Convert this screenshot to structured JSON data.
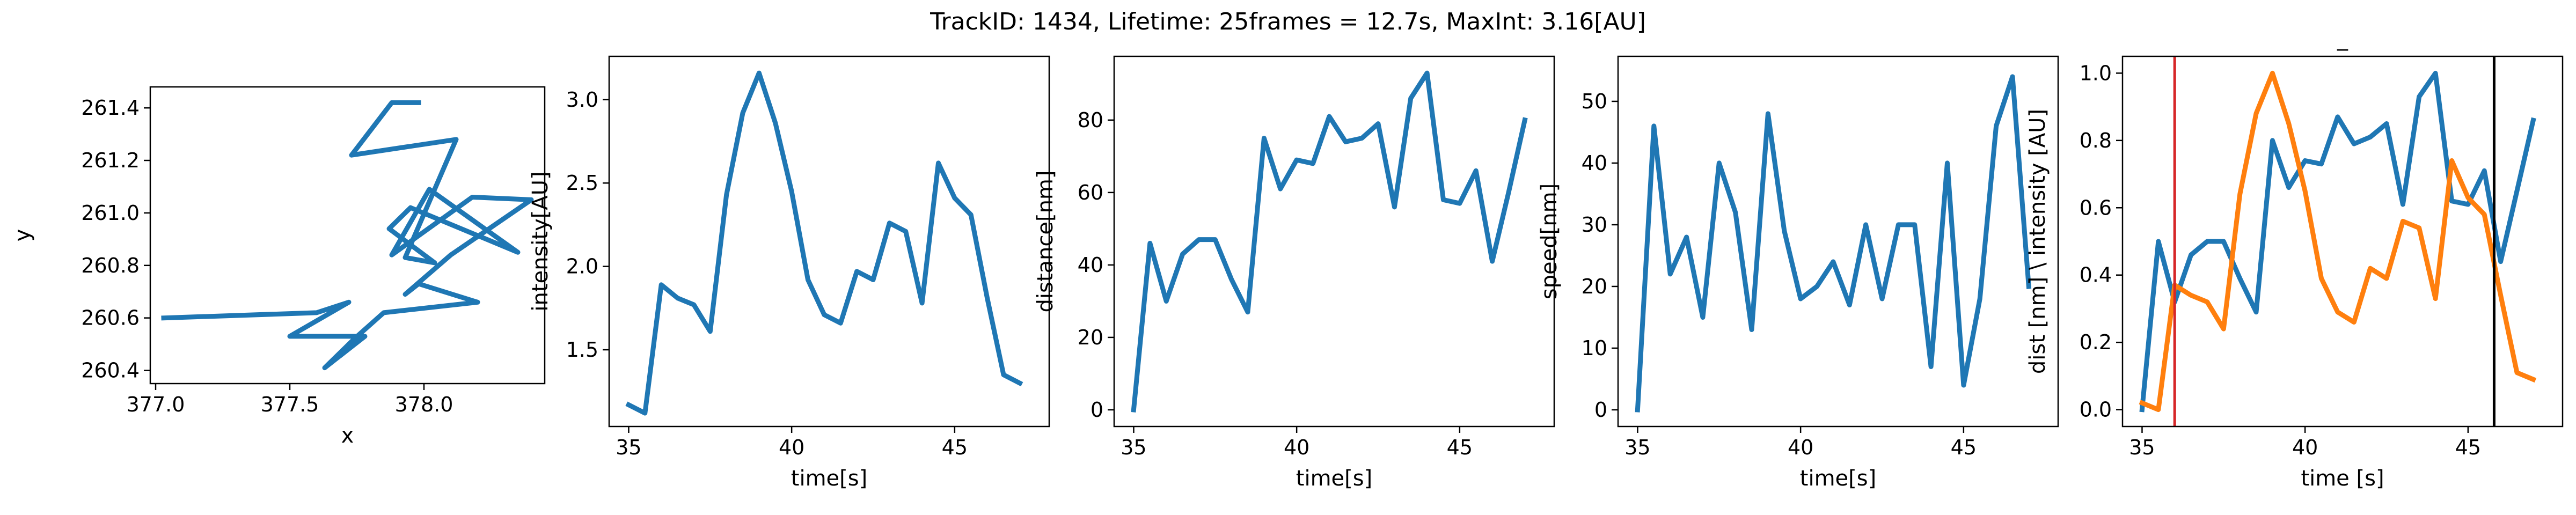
{
  "figure": {
    "title": "TrackID: 1434, Lifetime: 25frames = 12.7s, MaxInt: 3.16[AU]",
    "colors": {
      "blue": "#1f77b4",
      "orange": "#ff7f0e",
      "red": "#d62728",
      "black": "#000000"
    }
  },
  "chart_data": [
    {
      "type": "line",
      "title": "",
      "xlabel": "x",
      "ylabel": "y",
      "xlim": [
        376.98,
        378.45
      ],
      "ylim": [
        260.35,
        261.48
      ],
      "xticks": [
        377.0,
        377.5,
        378.0
      ],
      "xtick_labels": [
        "377.0",
        "377.5",
        "378.0"
      ],
      "yticks": [
        260.4,
        260.6,
        260.8,
        261.0,
        261.2,
        261.4
      ],
      "ytick_labels": [
        "260.4",
        "260.6",
        "260.8",
        "261.0",
        "261.2",
        "261.4"
      ],
      "series": [
        {
          "color": "#1f77b4",
          "x": [
            377.03,
            377.6,
            377.72,
            377.5,
            377.78,
            377.63,
            377.74,
            377.85,
            378.2,
            377.98,
            377.93,
            378.1,
            378.4,
            378.18,
            377.88,
            378.02,
            378.35,
            377.95,
            377.87,
            378.04,
            377.93,
            378.12,
            377.73,
            377.88,
            377.98
          ],
          "y": [
            260.6,
            260.62,
            260.66,
            260.53,
            260.53,
            260.41,
            260.52,
            260.62,
            260.66,
            260.73,
            260.69,
            260.84,
            261.05,
            261.06,
            260.84,
            261.09,
            260.85,
            261.02,
            260.94,
            260.81,
            260.83,
            261.28,
            261.22,
            261.42,
            261.42
          ]
        }
      ]
    },
    {
      "type": "line",
      "title": "",
      "xlabel": "time[s]",
      "ylabel": "intensity[AU]",
      "xlim": [
        34.4,
        47.9
      ],
      "ylim": [
        1.04,
        3.26
      ],
      "xticks": [
        35,
        40,
        45
      ],
      "xtick_labels": [
        "35",
        "40",
        "45"
      ],
      "yticks": [
        1.5,
        2.0,
        2.5,
        3.0
      ],
      "ytick_labels": [
        "1.5",
        "2.0",
        "2.5",
        "3.0"
      ],
      "series": [
        {
          "color": "#1f77b4",
          "x": [
            35.0,
            35.5,
            36.0,
            36.5,
            37.0,
            37.5,
            38.0,
            38.5,
            39.0,
            39.5,
            40.0,
            40.5,
            41.0,
            41.5,
            42.0,
            42.5,
            43.0,
            43.5,
            44.0,
            44.5,
            45.0,
            45.5,
            46.0,
            46.5,
            47.0
          ],
          "y": [
            1.17,
            1.12,
            1.89,
            1.81,
            1.77,
            1.61,
            2.43,
            2.92,
            3.16,
            2.86,
            2.45,
            1.92,
            1.71,
            1.66,
            1.97,
            1.92,
            2.26,
            2.21,
            1.78,
            2.62,
            2.41,
            2.31,
            1.81,
            1.35,
            1.3
          ]
        }
      ]
    },
    {
      "type": "line",
      "title": "",
      "xlabel": "time[s]",
      "ylabel": "distance[nm]",
      "xlim": [
        34.4,
        47.9
      ],
      "ylim": [
        -4.6,
        97.6
      ],
      "xticks": [
        35,
        40,
        45
      ],
      "xtick_labels": [
        "35",
        "40",
        "45"
      ],
      "yticks": [
        0,
        20,
        40,
        60,
        80
      ],
      "ytick_labels": [
        "0",
        "20",
        "40",
        "60",
        "80"
      ],
      "series": [
        {
          "color": "#1f77b4",
          "x": [
            35.0,
            35.5,
            36.0,
            36.5,
            37.0,
            37.5,
            38.0,
            38.5,
            39.0,
            39.5,
            40.0,
            40.5,
            41.0,
            41.5,
            42.0,
            42.5,
            43.0,
            43.5,
            44.0,
            44.5,
            45.0,
            45.5,
            46.0,
            46.5,
            47.0
          ],
          "y": [
            0,
            46,
            30,
            43,
            47,
            47,
            36,
            27,
            75,
            61,
            69,
            68,
            81,
            74,
            75,
            79,
            56,
            86,
            93,
            58,
            57,
            66,
            41,
            60,
            80
          ]
        }
      ]
    },
    {
      "type": "line",
      "title": "",
      "xlabel": "time[s]",
      "ylabel": "speed[nm]",
      "xlim": [
        34.4,
        47.9
      ],
      "ylim": [
        -2.7,
        57.3
      ],
      "xticks": [
        35,
        40,
        45
      ],
      "xtick_labels": [
        "35",
        "40",
        "45"
      ],
      "yticks": [
        0,
        10,
        20,
        30,
        40,
        50
      ],
      "ytick_labels": [
        "0",
        "10",
        "20",
        "30",
        "40",
        "50"
      ],
      "series": [
        {
          "color": "#1f77b4",
          "x": [
            35.0,
            35.5,
            36.0,
            36.5,
            37.0,
            37.5,
            38.0,
            38.5,
            39.0,
            39.5,
            40.0,
            40.5,
            41.0,
            41.5,
            42.0,
            42.5,
            43.0,
            43.5,
            44.0,
            44.5,
            45.0,
            45.5,
            46.0,
            46.5,
            47.0
          ],
          "y": [
            0,
            46,
            22,
            28,
            15,
            40,
            32,
            13,
            48,
            29,
            18,
            20,
            24,
            17,
            30,
            18,
            30,
            30,
            7,
            40,
            4,
            18,
            46,
            54,
            20
          ]
        }
      ]
    },
    {
      "type": "line",
      "title": "_",
      "xlabel": "time [s]",
      "ylabel": "dist [nm] \\ intensity [AU]",
      "xlim": [
        34.4,
        47.9
      ],
      "ylim": [
        -0.05,
        1.05
      ],
      "xticks": [
        35,
        40,
        45
      ],
      "xtick_labels": [
        "35",
        "40",
        "45"
      ],
      "yticks": [
        0.0,
        0.2,
        0.4,
        0.6,
        0.8,
        1.0
      ],
      "ytick_labels": [
        "0.0",
        "0.2",
        "0.4",
        "0.6",
        "0.8",
        "1.0"
      ],
      "vlines": [
        {
          "x": 36.0,
          "color": "#d62728"
        },
        {
          "x": 45.8,
          "color": "#000000"
        }
      ],
      "series": [
        {
          "color": "#1f77b4",
          "x": [
            35.0,
            35.5,
            36.0,
            36.5,
            37.0,
            37.5,
            38.0,
            38.5,
            39.0,
            39.5,
            40.0,
            40.5,
            41.0,
            41.5,
            42.0,
            42.5,
            43.0,
            43.5,
            44.0,
            44.5,
            45.0,
            45.5,
            46.0,
            46.5,
            47.0
          ],
          "y": [
            0.0,
            0.5,
            0.32,
            0.46,
            0.5,
            0.5,
            0.39,
            0.29,
            0.8,
            0.66,
            0.74,
            0.73,
            0.87,
            0.79,
            0.81,
            0.85,
            0.61,
            0.93,
            1.0,
            0.62,
            0.61,
            0.71,
            0.44,
            0.65,
            0.86
          ]
        },
        {
          "color": "#ff7f0e",
          "x": [
            35.0,
            35.5,
            36.0,
            36.5,
            37.0,
            37.5,
            38.0,
            38.5,
            39.0,
            39.5,
            40.0,
            40.5,
            41.0,
            41.5,
            42.0,
            42.5,
            43.0,
            43.5,
            44.0,
            44.5,
            45.0,
            45.5,
            46.0,
            46.5,
            47.0
          ],
          "y": [
            0.02,
            0.0,
            0.37,
            0.34,
            0.32,
            0.24,
            0.64,
            0.88,
            1.0,
            0.85,
            0.65,
            0.39,
            0.29,
            0.26,
            0.42,
            0.39,
            0.56,
            0.54,
            0.33,
            0.74,
            0.63,
            0.58,
            0.34,
            0.11,
            0.09
          ]
        }
      ]
    }
  ]
}
